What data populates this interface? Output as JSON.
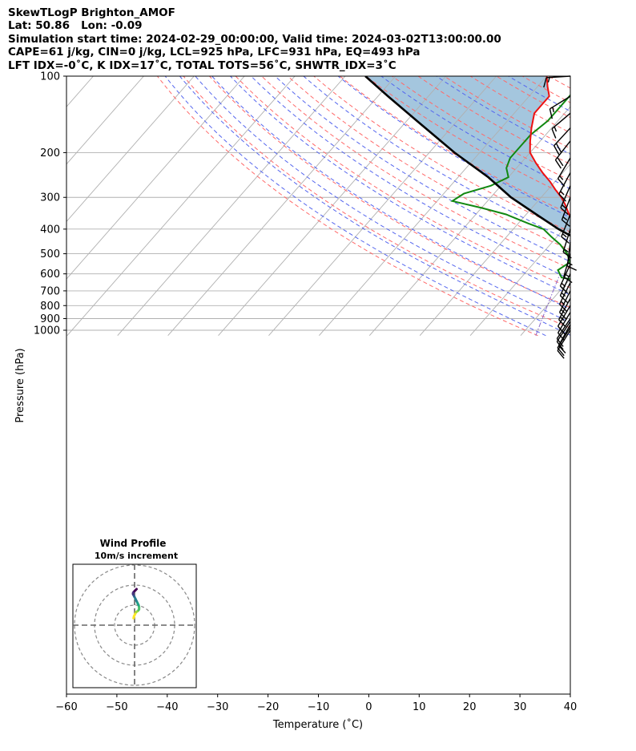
{
  "header": {
    "line1": "SkewTLogP Brighton_AMOF",
    "line2": "Lat: 50.86   Lon: -0.09",
    "line3": "Simulation start time: 2024-02-29_00:00:00, Valid time: 2024-03-02T13:00:00.00",
    "line4": "CAPE=61 j/kg, CIN=0 j/kg, LCL=925 hPa, LFC=931 hPa, EQ=493 hPa",
    "line5": "LFT IDX=-0˚C, K IDX=17˚C, TOTAL TOTS=56˚C, SHWTR_IDX=3˚C"
  },
  "chart_data": {
    "type": "skew-t",
    "xlabel": "Temperature (˚C)",
    "ylabel": "Pressure (hPa)",
    "xlim": [
      -60,
      40
    ],
    "ylim": [
      1050,
      100
    ],
    "y_scale": "log",
    "grid": true,
    "xticks": [
      -60,
      -50,
      -40,
      -30,
      -20,
      -10,
      0,
      10,
      20,
      30,
      40
    ],
    "xtick_labels": [
      "−60",
      "−50",
      "−40",
      "−30",
      "−20",
      "−10",
      "0",
      "10",
      "20",
      "30",
      "40"
    ],
    "yticks": [
      1000,
      900,
      800,
      700,
      600,
      500,
      400,
      300,
      200,
      100
    ],
    "ytick_labels": [
      "1000",
      "900",
      "800",
      "700",
      "600",
      "500",
      "400",
      "300",
      "200",
      "100"
    ],
    "colors": {
      "temperature": "#ee1111",
      "dewpoint": "#118811",
      "parcel": "#000000",
      "cape_fill": "#a4c6de",
      "dry_adiabat": "#ff6a6a",
      "moist_adiabat": "#5566ee",
      "mixing_ratio": "#8866cc",
      "isotherm": "#b0b0b0"
    },
    "temperature": {
      "p": [
        970,
        930,
        900,
        850,
        800,
        750,
        700,
        650,
        600,
        550,
        500,
        450,
        400,
        380,
        350,
        320,
        300,
        280,
        260,
        240,
        220,
        200,
        180,
        160,
        140,
        130,
        120,
        110,
        100
      ],
      "t": [
        8,
        5,
        3,
        0,
        -3,
        -6,
        -9.5,
        -13,
        -17,
        -21,
        -25.5,
        -30,
        -36,
        -39,
        -41.5,
        -44,
        -46,
        -48.5,
        -51,
        -54,
        -57,
        -60,
        -62,
        -64,
        -66,
        -66,
        -66,
        -68,
        -70
      ]
    },
    "dewpoint": {
      "p": [
        970,
        950,
        930,
        900,
        870,
        840,
        800,
        750,
        700,
        650,
        620,
        580,
        540,
        500,
        460,
        430,
        400,
        380,
        350,
        330,
        310,
        290,
        270,
        250,
        230,
        210,
        190,
        170,
        150,
        130,
        110,
        100
      ],
      "td": [
        5,
        5,
        5.5,
        1,
        -3,
        -6,
        -10,
        -14,
        -19,
        -26,
        -32,
        -34,
        -33,
        -35,
        -38,
        -41,
        -44,
        -48,
        -54,
        -60,
        -67,
        -66,
        -62,
        -60,
        -62,
        -63,
        -63,
        -63,
        -62,
        -62,
        -62,
        -62
      ]
    },
    "parcel": {
      "p": [
        975,
        925,
        900,
        850,
        800,
        750,
        700,
        650,
        600,
        550,
        500,
        450,
        400,
        350,
        300,
        250,
        200,
        150,
        120,
        100
      ],
      "tp": [
        8,
        5.5,
        4.2,
        1.5,
        -1.2,
        -4.3,
        -8,
        -12,
        -16.5,
        -21.5,
        -27,
        -34,
        -41,
        -48,
        -56,
        -64,
        -75,
        -88,
        -98,
        -106
      ]
    },
    "wind_barbs": [
      {
        "p": 1000,
        "u": 5,
        "v": 8
      },
      {
        "p": 975,
        "u": 5,
        "v": 8
      },
      {
        "p": 950,
        "u": 5,
        "v": 9
      },
      {
        "p": 925,
        "u": 6,
        "v": 9
      },
      {
        "p": 900,
        "u": 6,
        "v": 9
      },
      {
        "p": 850,
        "u": 6,
        "v": 10
      },
      {
        "p": 800,
        "u": 6,
        "v": 10
      },
      {
        "p": 750,
        "u": 6,
        "v": 11
      },
      {
        "p": 700,
        "u": 6,
        "v": 12
      },
      {
        "p": 650,
        "u": 6,
        "v": 12
      },
      {
        "p": 600,
        "u": 6,
        "v": 13
      },
      {
        "p": 550,
        "u": 6,
        "v": 13
      },
      {
        "p": 500,
        "u": 4,
        "v": 14
      },
      {
        "p": 450,
        "u": 2,
        "v": 16
      },
      {
        "p": 400,
        "u": 5,
        "v": 16
      },
      {
        "p": 350,
        "u": 6,
        "v": 15
      },
      {
        "p": 300,
        "u": 6,
        "v": 16
      },
      {
        "p": 270,
        "u": 7,
        "v": 16
      },
      {
        "p": 240,
        "u": 8,
        "v": 15
      },
      {
        "p": 210,
        "u": 9,
        "v": 15
      },
      {
        "p": 180,
        "u": 11,
        "v": 14
      },
      {
        "p": 160,
        "u": 12,
        "v": 13
      },
      {
        "p": 140,
        "u": 13,
        "v": 11
      },
      {
        "p": 120,
        "u": 13,
        "v": 8
      },
      {
        "p": 100,
        "u": 16,
        "v": 1
      }
    ],
    "hodograph": {
      "title": "Wind Profile",
      "subtitle": "10m/s increment",
      "u": [
        -1,
        -0.5,
        0.5,
        1.5,
        3,
        4,
        4.5,
        4.5,
        4,
        3,
        2,
        1,
        0,
        -0.5,
        -1,
        -1.5,
        -1.5,
        -1,
        0,
        1,
        2
      ],
      "v": [
        7,
        9,
        11,
        13,
        14,
        15,
        16,
        18,
        20,
        22,
        24,
        26,
        28,
        29,
        30,
        31,
        32,
        33,
        34,
        35,
        36
      ]
    }
  }
}
